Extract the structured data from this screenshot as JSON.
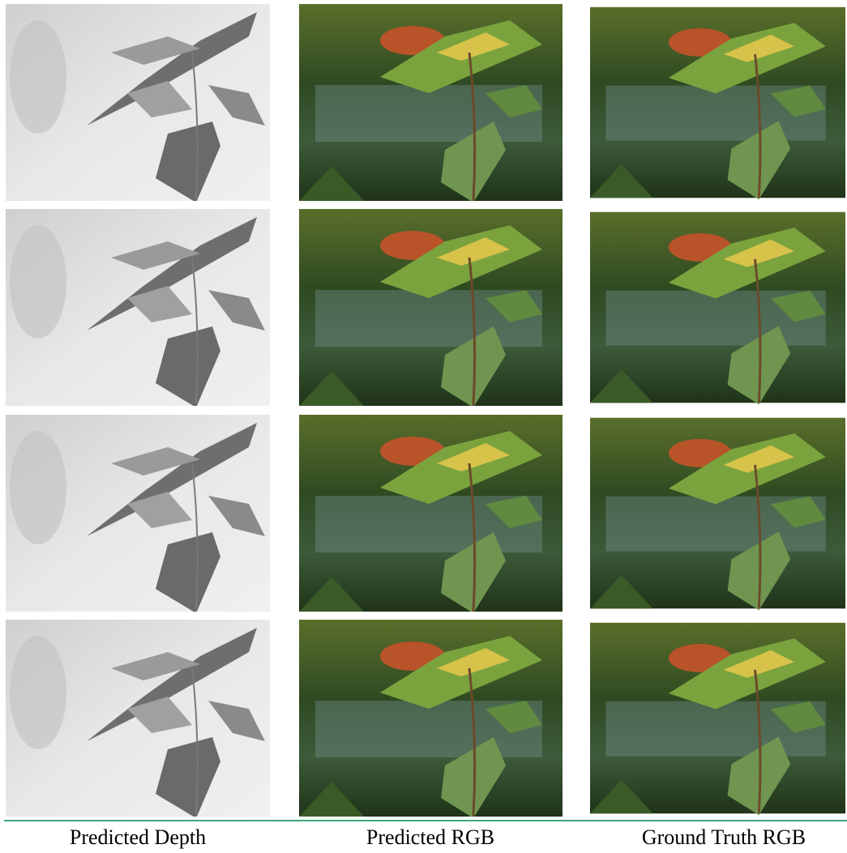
{
  "figure": {
    "captions": [
      "Predicted Depth",
      "Predicted RGB",
      "Ground Truth RGB"
    ]
  }
}
